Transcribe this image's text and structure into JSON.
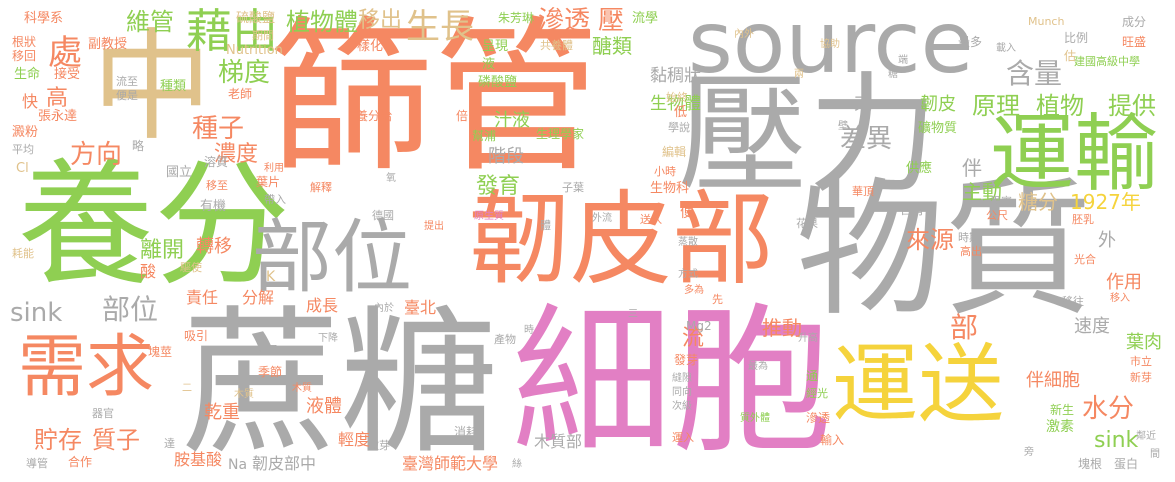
{
  "words": [
    {
      "text": "篩管",
      "color": "#f58862"
    },
    {
      "text": "物質",
      "color": "#aaaaaa"
    },
    {
      "text": "蔗糖",
      "color": "#aaaaaa"
    },
    {
      "text": "細胞",
      "color": "#e27fc4"
    },
    {
      "text": "壓力",
      "color": "#aaaaaa"
    },
    {
      "text": "養分",
      "color": "#8fcf52"
    },
    {
      "text": "中",
      "color": "#e0c28b"
    },
    {
      "text": "source",
      "color": "#aaaaaa"
    },
    {
      "text": "韌皮部",
      "color": "#f58862"
    },
    {
      "text": "部位",
      "color": "#aaaaaa"
    },
    {
      "text": "運送",
      "color": "#f5d33c"
    },
    {
      "text": "運輸",
      "color": "#8fcf52"
    },
    {
      "text": "需求",
      "color": "#f58862"
    },
    {
      "text": "藉由",
      "color": "#8fcf52"
    },
    {
      "text": "生長",
      "color": "#e0c28b"
    },
    {
      "text": "移出",
      "color": "#e0c28b"
    },
    {
      "text": "植物體",
      "color": "#8fcf52"
    },
    {
      "text": "維管",
      "color": "#8fcf52"
    },
    {
      "text": "滲透",
      "color": "#f58862"
    },
    {
      "text": "壓",
      "color": "#f58862"
    },
    {
      "text": "含量",
      "color": "#aaaaaa"
    },
    {
      "text": "原理",
      "color": "#8fcf52"
    },
    {
      "text": "植物",
      "color": "#8fcf52"
    },
    {
      "text": "提供",
      "color": "#8fcf52"
    },
    {
      "text": "處",
      "color": "#f58862"
    },
    {
      "text": "梯度",
      "color": "#8fcf52"
    },
    {
      "text": "方向",
      "color": "#f58862"
    },
    {
      "text": "種子",
      "color": "#f58862"
    },
    {
      "text": "濃度",
      "color": "#f58862"
    },
    {
      "text": "差異",
      "color": "#aaaaaa"
    },
    {
      "text": "醣類",
      "color": "#8fcf52"
    },
    {
      "text": "黏稠狀",
      "color": "#aaaaaa"
    },
    {
      "text": "生物體",
      "color": "#8fcf52"
    },
    {
      "text": "韌皮",
      "color": "#8fcf52"
    },
    {
      "text": "束",
      "color": "#aaaaaa"
    },
    {
      "text": "伴",
      "color": "#aaaaaa"
    },
    {
      "text": "主動",
      "color": "#8fcf52"
    },
    {
      "text": "糖分",
      "color": "#e0c28b"
    },
    {
      "text": "1927年",
      "color": "#f5d33c"
    },
    {
      "text": "sink",
      "color": "#aaaaaa"
    },
    {
      "text": "部位",
      "color": "#aaaaaa"
    },
    {
      "text": "貯存",
      "color": "#f58862"
    },
    {
      "text": "質子",
      "color": "#f58862"
    },
    {
      "text": "水分",
      "color": "#f58862"
    },
    {
      "text": "伴細胞",
      "color": "#f58862"
    },
    {
      "text": "推動",
      "color": "#f58862"
    },
    {
      "text": "部",
      "color": "#f58862"
    },
    {
      "text": "來源",
      "color": "#f58862"
    },
    {
      "text": "葉肉",
      "color": "#8fcf52"
    },
    {
      "text": "速度",
      "color": "#aaaaaa"
    },
    {
      "text": "作用",
      "color": "#f58862"
    },
    {
      "text": "外",
      "color": "#aaaaaa"
    },
    {
      "text": "離開",
      "color": "#8fcf52"
    },
    {
      "text": "轉移",
      "color": "#f58862"
    },
    {
      "text": "發育",
      "color": "#8fcf52"
    },
    {
      "text": "階段",
      "color": "#aaaaaa"
    },
    {
      "text": "汁液",
      "color": "#8fcf52"
    },
    {
      "text": "流",
      "color": "#f58862"
    },
    {
      "text": "sink",
      "color": "#8fcf52"
    },
    {
      "text": "乾重",
      "color": "#f58862"
    },
    {
      "text": "液體",
      "color": "#f58862"
    },
    {
      "text": "成長",
      "color": "#f58862"
    },
    {
      "text": "臺北",
      "color": "#f58862"
    },
    {
      "text": "責任",
      "color": "#f58862"
    },
    {
      "text": "分解",
      "color": "#f58862"
    },
    {
      "text": "酸",
      "color": "#f58862"
    },
    {
      "text": "胺基酸",
      "color": "#f58862"
    },
    {
      "text": "臺灣師範大學",
      "color": "#f58862"
    },
    {
      "text": "韌皮部中",
      "color": "#aaaaaa"
    },
    {
      "text": "木質部",
      "color": "#aaaaaa"
    },
    {
      "text": "輕度",
      "color": "#f58862"
    },
    {
      "text": "科學系",
      "color": "#f58862"
    },
    {
      "text": "副教授",
      "color": "#f58862"
    },
    {
      "text": "根狀",
      "color": "#f58862"
    },
    {
      "text": "移回",
      "color": "#f58862"
    },
    {
      "text": "生命",
      "color": "#8fcf52"
    },
    {
      "text": "接受",
      "color": "#f58862"
    },
    {
      "text": "快",
      "color": "#f58862"
    },
    {
      "text": "高",
      "color": "#f58862"
    },
    {
      "text": "張永達",
      "color": "#f58862"
    },
    {
      "text": "澱粉",
      "color": "#f58862"
    },
    {
      "text": "平均",
      "color": "#aaaaaa"
    },
    {
      "text": "Cl",
      "color": "#e0c28b"
    },
    {
      "text": "硫酸鹽",
      "color": "#e0c28b"
    },
    {
      "text": "期間",
      "color": "#e0c28b"
    },
    {
      "text": "Nutrition",
      "color": "#e0c28b"
    },
    {
      "text": "多樣化",
      "color": "#f58862"
    },
    {
      "text": "朱芳琳",
      "color": "#8fcf52"
    },
    {
      "text": "呈現",
      "color": "#8fcf52"
    },
    {
      "text": "共養體",
      "color": "#e0c28b"
    },
    {
      "text": "流學",
      "color": "#8fcf52"
    },
    {
      "text": "內外",
      "color": "#e0c28b"
    },
    {
      "text": "磷酸鹽",
      "color": "#8fcf52"
    },
    {
      "text": "液",
      "color": "#8fcf52"
    },
    {
      "text": "種類",
      "color": "#8fcf52"
    },
    {
      "text": "流至",
      "color": "#aaaaaa"
    },
    {
      "text": "便是",
      "color": "#aaaaaa"
    },
    {
      "text": "老師",
      "color": "#f58862"
    },
    {
      "text": "養分給",
      "color": "#f58862"
    },
    {
      "text": "倍",
      "color": "#f58862"
    },
    {
      "text": "幫浦",
      "color": "#8fcf52"
    },
    {
      "text": "生理學家",
      "color": "#8fcf52"
    },
    {
      "text": "始終",
      "color": "#e0c28b"
    },
    {
      "text": "低",
      "color": "#f58862"
    },
    {
      "text": "學說",
      "color": "#aaaaaa"
    },
    {
      "text": "編輯",
      "color": "#e0c28b"
    },
    {
      "text": "小時",
      "color": "#f58862"
    },
    {
      "text": "生物科",
      "color": "#f58862"
    },
    {
      "text": "礦物質",
      "color": "#8fcf52"
    },
    {
      "text": "供應",
      "color": "#8fcf52"
    },
    {
      "text": "葉片",
      "color": "#f58862"
    },
    {
      "text": "移至",
      "color": "#f58862"
    },
    {
      "text": "帶入",
      "color": "#aaaaaa"
    },
    {
      "text": "有機",
      "color": "#aaaaaa"
    },
    {
      "text": "國立",
      "color": "#aaaaaa"
    },
    {
      "text": "溶質",
      "color": "#aaaaaa"
    },
    {
      "text": "利用",
      "color": "#f58862"
    },
    {
      "text": "解釋",
      "color": "#f58862"
    },
    {
      "text": "氧",
      "color": "#aaaaaa"
    },
    {
      "text": "子葉",
      "color": "#aaaaaa"
    },
    {
      "text": "德國",
      "color": "#aaaaaa"
    },
    {
      "text": "提出",
      "color": "#f58862"
    },
    {
      "text": "原生質",
      "color": "#e27fc4"
    },
    {
      "text": "體",
      "color": "#aaaaaa"
    },
    {
      "text": "外流",
      "color": "#aaaaaa"
    },
    {
      "text": "送入",
      "color": "#f58862"
    },
    {
      "text": "便",
      "color": "#f58862"
    },
    {
      "text": "華頂",
      "color": "#f58862"
    },
    {
      "text": "含有",
      "color": "#aaaaaa"
    },
    {
      "text": "果實",
      "color": "#aaaaaa"
    },
    {
      "text": "公尺",
      "color": "#f58862"
    },
    {
      "text": "胚乳",
      "color": "#f58862"
    },
    {
      "text": "花果",
      "color": "#aaaaaa"
    },
    {
      "text": "時期",
      "color": "#aaaaaa"
    },
    {
      "text": "高出",
      "color": "#f58862"
    },
    {
      "text": "光合",
      "color": "#f58862"
    },
    {
      "text": "蒸散",
      "color": "#aaaaaa"
    },
    {
      "text": "方式",
      "color": "#aaaaaa"
    },
    {
      "text": "多為",
      "color": "#f58862"
    },
    {
      "text": "先",
      "color": "#f58862"
    },
    {
      "text": "移往",
      "color": "#aaaaaa"
    },
    {
      "text": "移入",
      "color": "#f58862"
    },
    {
      "text": "Munch",
      "color": "#e0c28b"
    },
    {
      "text": "成分",
      "color": "#aaaaaa"
    },
    {
      "text": "比例",
      "color": "#aaaaaa"
    },
    {
      "text": "旺盛",
      "color": "#f58862"
    },
    {
      "text": "估",
      "color": "#e0c28b"
    },
    {
      "text": "建國高級中學",
      "color": "#8fcf52"
    },
    {
      "text": "最多",
      "color": "#aaaaaa"
    },
    {
      "text": "載入",
      "color": "#aaaaaa"
    },
    {
      "text": "協助",
      "color": "#e0c28b"
    },
    {
      "text": "兩",
      "color": "#e0c28b"
    },
    {
      "text": "端",
      "color": "#aaaaaa"
    },
    {
      "text": "糖",
      "color": "#aaaaaa"
    },
    {
      "text": "壁",
      "color": "#aaaaaa"
    },
    {
      "text": "耗能",
      "color": "#e0c28b"
    },
    {
      "text": "驅使",
      "color": "#e0c28b"
    },
    {
      "text": "K",
      "color": "#e0c28b"
    },
    {
      "text": "塊莖",
      "color": "#f58862"
    },
    {
      "text": "吸引",
      "color": "#f58862"
    },
    {
      "text": "器官",
      "color": "#aaaaaa"
    },
    {
      "text": "導管",
      "color": "#aaaaaa"
    },
    {
      "text": "合作",
      "color": "#f58862"
    },
    {
      "text": "達",
      "color": "#aaaaaa"
    },
    {
      "text": "季節",
      "color": "#f58862"
    },
    {
      "text": "內於",
      "color": "#aaaaaa"
    },
    {
      "text": "下降",
      "color": "#aaaaaa"
    },
    {
      "text": "離子",
      "color": "#aaaaaa"
    },
    {
      "text": "木質",
      "color": "#e0c28b"
    },
    {
      "text": "嫩芽",
      "color": "#aaaaaa"
    },
    {
      "text": "Na",
      "color": "#aaaaaa"
    },
    {
      "text": "消耗",
      "color": "#aaaaaa"
    },
    {
      "text": "時",
      "color": "#aaaaaa"
    },
    {
      "text": "三",
      "color": "#aaaaaa"
    },
    {
      "text": "Mg2",
      "color": "#aaaaaa"
    },
    {
      "text": "產物",
      "color": "#aaaaaa"
    },
    {
      "text": "升高",
      "color": "#aaaaaa"
    },
    {
      "text": "發芽",
      "color": "#f58862"
    },
    {
      "text": "縫隙",
      "color": "#aaaaaa"
    },
    {
      "text": "同向",
      "color": "#aaaaaa"
    },
    {
      "text": "次級",
      "color": "#aaaaaa"
    },
    {
      "text": "最為",
      "color": "#aaaaaa"
    },
    {
      "text": "通",
      "color": "#8fcf52"
    },
    {
      "text": "經光",
      "color": "#8fcf52"
    },
    {
      "text": "質外體",
      "color": "#8fcf52"
    },
    {
      "text": "輸入",
      "color": "#f58862"
    },
    {
      "text": "運入",
      "color": "#f58862"
    },
    {
      "text": "滲透",
      "color": "#f58862"
    },
    {
      "text": "新生",
      "color": "#8fcf52"
    },
    {
      "text": "激素",
      "color": "#8fcf52"
    },
    {
      "text": "市立",
      "color": "#f58862"
    },
    {
      "text": "新芽",
      "color": "#f58862"
    },
    {
      "text": "鄰近",
      "color": "#aaaaaa"
    },
    {
      "text": "旁",
      "color": "#aaaaaa"
    },
    {
      "text": "塊根",
      "color": "#aaaaaa"
    },
    {
      "text": "蛋白",
      "color": "#aaaaaa"
    },
    {
      "text": "間",
      "color": "#aaaaaa"
    },
    {
      "text": "絲",
      "color": "#aaaaaa"
    },
    {
      "text": "略",
      "color": "#aaaaaa"
    },
    {
      "text": "二",
      "color": "#e0c28b"
    },
    {
      "text": "木質",
      "color": "#f58862"
    }
  ]
}
